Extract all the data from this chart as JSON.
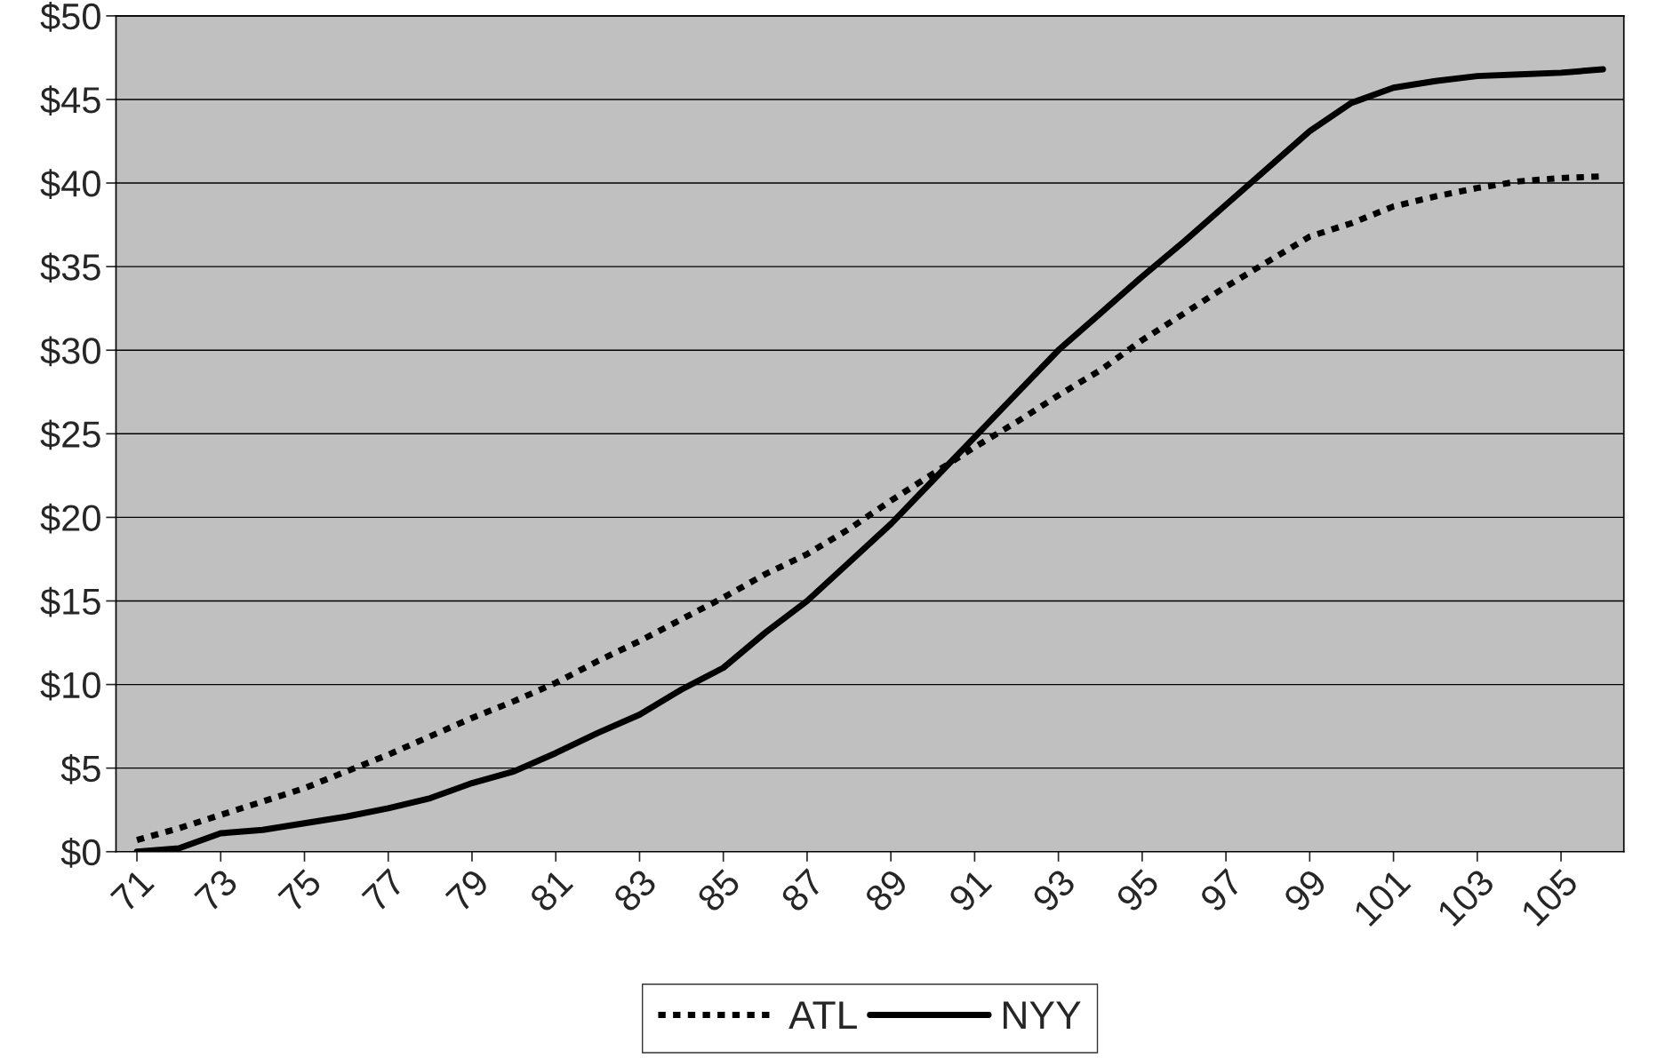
{
  "chart_data": {
    "type": "line",
    "x": [
      71,
      72,
      73,
      74,
      75,
      76,
      77,
      78,
      79,
      80,
      81,
      82,
      83,
      84,
      85,
      86,
      87,
      88,
      89,
      90,
      91,
      92,
      93,
      94,
      95,
      96,
      97,
      98,
      99,
      100,
      101,
      102,
      103,
      104,
      105,
      106
    ],
    "series": [
      {
        "name": "ATL",
        "color": "#000000",
        "line_style": "dotted",
        "values": [
          0.7,
          1.4,
          2.2,
          3.0,
          3.8,
          4.8,
          5.8,
          6.9,
          8.0,
          9.0,
          10.1,
          11.4,
          12.6,
          13.9,
          15.2,
          16.6,
          17.8,
          19.3,
          21.0,
          22.6,
          24.2,
          25.7,
          27.3,
          28.8,
          30.6,
          32.2,
          33.8,
          35.3,
          36.8,
          37.6,
          38.6,
          39.2,
          39.7,
          40.1,
          40.3,
          40.4
        ]
      },
      {
        "name": "NYY",
        "color": "#000000",
        "line_style": "solid",
        "values": [
          0,
          0.2,
          1.1,
          1.3,
          1.7,
          2.1,
          2.6,
          3.2,
          4.1,
          4.8,
          5.9,
          7.1,
          8.2,
          9.7,
          11.0,
          13.1,
          15.0,
          17.3,
          19.6,
          22.2,
          24.8,
          27.4,
          30.0,
          32.2,
          34.4,
          36.5,
          38.7,
          40.9,
          43.1,
          44.8,
          45.7,
          46.1,
          46.4,
          46.5,
          46.6,
          46.8
        ]
      }
    ],
    "xlim": [
      70.5,
      106.5
    ],
    "xticks": [
      71,
      73,
      75,
      77,
      79,
      81,
      83,
      85,
      87,
      89,
      91,
      93,
      95,
      97,
      99,
      101,
      103,
      105
    ],
    "ylim": [
      0,
      50
    ],
    "yticks": [
      {
        "value": 0,
        "label": "$0"
      },
      {
        "value": 5,
        "label": "$5"
      },
      {
        "value": 10,
        "label": "$10"
      },
      {
        "value": 15,
        "label": "$15"
      },
      {
        "value": 20,
        "label": "$20"
      },
      {
        "value": 25,
        "label": "$25"
      },
      {
        "value": 30,
        "label": "$30"
      },
      {
        "value": 35,
        "label": "$35"
      },
      {
        "value": 40,
        "label": "$40"
      },
      {
        "value": 45,
        "label": "$45"
      },
      {
        "value": 50,
        "label": "$50"
      }
    ],
    "grid": "y",
    "legend": "bottom"
  }
}
